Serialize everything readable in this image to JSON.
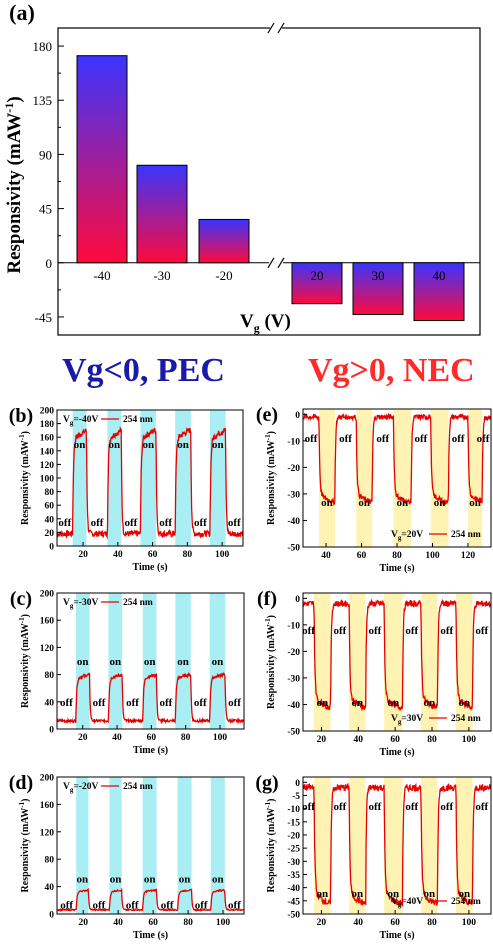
{
  "panel_a": {
    "tag": "(a)",
    "ylabel_main": "Responsivity (mAW",
    "ylabel_sup": "-1",
    "ylabel_close": ")",
    "xlabel_main": "V",
    "xlabel_sub": "g",
    "xlabel_unit": " (V)",
    "colors": {
      "bar_top": "#3a34ff",
      "bar_bottom": "#ff0a3c"
    }
  },
  "headings": {
    "left": {
      "text": "Vg<0, PEC",
      "color": "#1a1aa8"
    },
    "right": {
      "text": "Vg>0, NEC",
      "color": "#ff2a2a"
    }
  },
  "chart_data": [
    {
      "panel": "a",
      "type": "bar",
      "ylabel": "Responsivity (mAW-1)",
      "xlabel": "Vg (V)",
      "ylim": [
        -60,
        195
      ],
      "yticks": [
        -45,
        0,
        45,
        90,
        135,
        180
      ],
      "categories": [
        "-40",
        "-30",
        "-20",
        "20",
        "30",
        "40"
      ],
      "values": [
        172,
        81,
        36,
        -34,
        -43,
        -48
      ],
      "axis_break": true,
      "grid": false
    },
    {
      "panel": "b",
      "type": "line",
      "tag": "(b)",
      "series_name": "254 nm",
      "vg_label": "=-40V",
      "xlabel": "Time (s)",
      "ylabel": "Responsivity (mAW-1)",
      "xlim": [
        5,
        112
      ],
      "ylim": [
        0,
        200
      ],
      "xticks": [
        20,
        40,
        60,
        80,
        100
      ],
      "yticks": [
        0,
        20,
        40,
        60,
        80,
        100,
        120,
        140,
        160,
        180,
        200
      ],
      "on_intervals": [
        [
          14,
          22
        ],
        [
          34,
          42
        ],
        [
          53,
          62
        ],
        [
          73,
          82
        ],
        [
          93,
          102
        ]
      ],
      "on_level": 170,
      "off_level": 18,
      "on_label": "on",
      "off_label": "off",
      "label_on_y": 150,
      "label_off_y": 35,
      "highlight_color": "#a9eef2"
    },
    {
      "panel": "c",
      "type": "line",
      "tag": "(c)",
      "series_name": "254 nm",
      "vg_label": "=-30V",
      "xlabel": "Time (s)",
      "ylabel": "Responsivity (mAW-1)",
      "xlim": [
        5,
        114
      ],
      "ylim": [
        0,
        200
      ],
      "xticks": [
        20,
        40,
        60,
        80,
        100
      ],
      "yticks": [
        0,
        40,
        80,
        120,
        160,
        200
      ],
      "on_intervals": [
        [
          16,
          24
        ],
        [
          35,
          43
        ],
        [
          55,
          63
        ],
        [
          74,
          83
        ],
        [
          94,
          103
        ]
      ],
      "on_level": 80,
      "off_level": 12,
      "on_label": "on",
      "off_label": "off",
      "label_on_y": 100,
      "label_off_y": 40,
      "highlight_color": "#a9eef2"
    },
    {
      "panel": "d",
      "type": "line",
      "tag": "(d)",
      "series_name": "254 nm",
      "vg_label": "=-20V",
      "xlabel": "Time (s)",
      "ylabel": "Responsivity (mAW-1)",
      "xlim": [
        5,
        112
      ],
      "ylim": [
        0,
        200
      ],
      "xticks": [
        20,
        40,
        60,
        80,
        100
      ],
      "yticks": [
        0,
        40,
        80,
        120,
        160,
        200
      ],
      "on_intervals": [
        [
          16,
          23
        ],
        [
          35,
          42
        ],
        [
          54,
          62
        ],
        [
          74,
          82
        ],
        [
          93,
          101
        ]
      ],
      "on_level": 35,
      "off_level": 6,
      "on_label": "on",
      "off_label": "off",
      "label_on_y": 52,
      "label_off_y": 14,
      "highlight_color": "#a9eef2"
    },
    {
      "panel": "e",
      "type": "line",
      "tag": "(e)",
      "series_name": "254 nm",
      "vg_label": "=20V",
      "xlabel": "Time (s)",
      "ylabel": "Responsivity (mAW-1)",
      "xlim": [
        27,
        133
      ],
      "ylim": [
        -50,
        2
      ],
      "xticks": [
        40,
        60,
        80,
        100,
        120
      ],
      "yticks": [
        -50,
        -40,
        -30,
        -20,
        -10,
        0
      ],
      "on_intervals": [
        [
          36,
          45
        ],
        [
          57,
          66
        ],
        [
          78,
          88
        ],
        [
          99,
          109
        ],
        [
          120,
          128
        ]
      ],
      "on_level": -33,
      "off_level": -1,
      "on_label": "on",
      "off_label": "off",
      "label_on_y": -33,
      "label_off_y": -9,
      "highlight_color": "#fff3b3"
    },
    {
      "panel": "f",
      "type": "line",
      "tag": "(f)",
      "series_name": "254 nm",
      "vg_label": "=30V",
      "xlabel": "Time (s)",
      "ylabel": "Responsivity (mAW-1)",
      "xlim": [
        10,
        112
      ],
      "ylim": [
        -50,
        2
      ],
      "xticks": [
        20,
        40,
        60,
        80,
        100
      ],
      "yticks": [
        -50,
        -40,
        -30,
        -20,
        -10,
        0
      ],
      "on_intervals": [
        [
          16,
          25
        ],
        [
          35,
          44
        ],
        [
          54,
          64
        ],
        [
          74,
          83
        ],
        [
          93,
          102
        ]
      ],
      "on_level": -41,
      "off_level": -2,
      "on_label": "on",
      "off_label": "off",
      "label_on_y": -39,
      "label_off_y": -12,
      "highlight_color": "#fff3b3"
    },
    {
      "panel": "g",
      "type": "line",
      "tag": "(g)",
      "series_name": "254 nm",
      "vg_label": "=40V",
      "xlabel": "Time (s)",
      "ylabel": "Responsivity (mAW-1)",
      "xlim": [
        10,
        112
      ],
      "ylim": [
        -50,
        2
      ],
      "xticks": [
        20,
        40,
        60,
        80,
        100
      ],
      "yticks": [
        -50,
        -45,
        -40,
        -35,
        -30,
        -25,
        -20,
        -15,
        -10,
        -5,
        0
      ],
      "on_intervals": [
        [
          16,
          25
        ],
        [
          35,
          44
        ],
        [
          54,
          64
        ],
        [
          74,
          83
        ],
        [
          93,
          102
        ]
      ],
      "on_level": -46,
      "off_level": -2,
      "on_label": "on",
      "off_label": "off",
      "label_on_y": -42,
      "label_off_y": -9,
      "highlight_color": "#fff3b3"
    }
  ]
}
